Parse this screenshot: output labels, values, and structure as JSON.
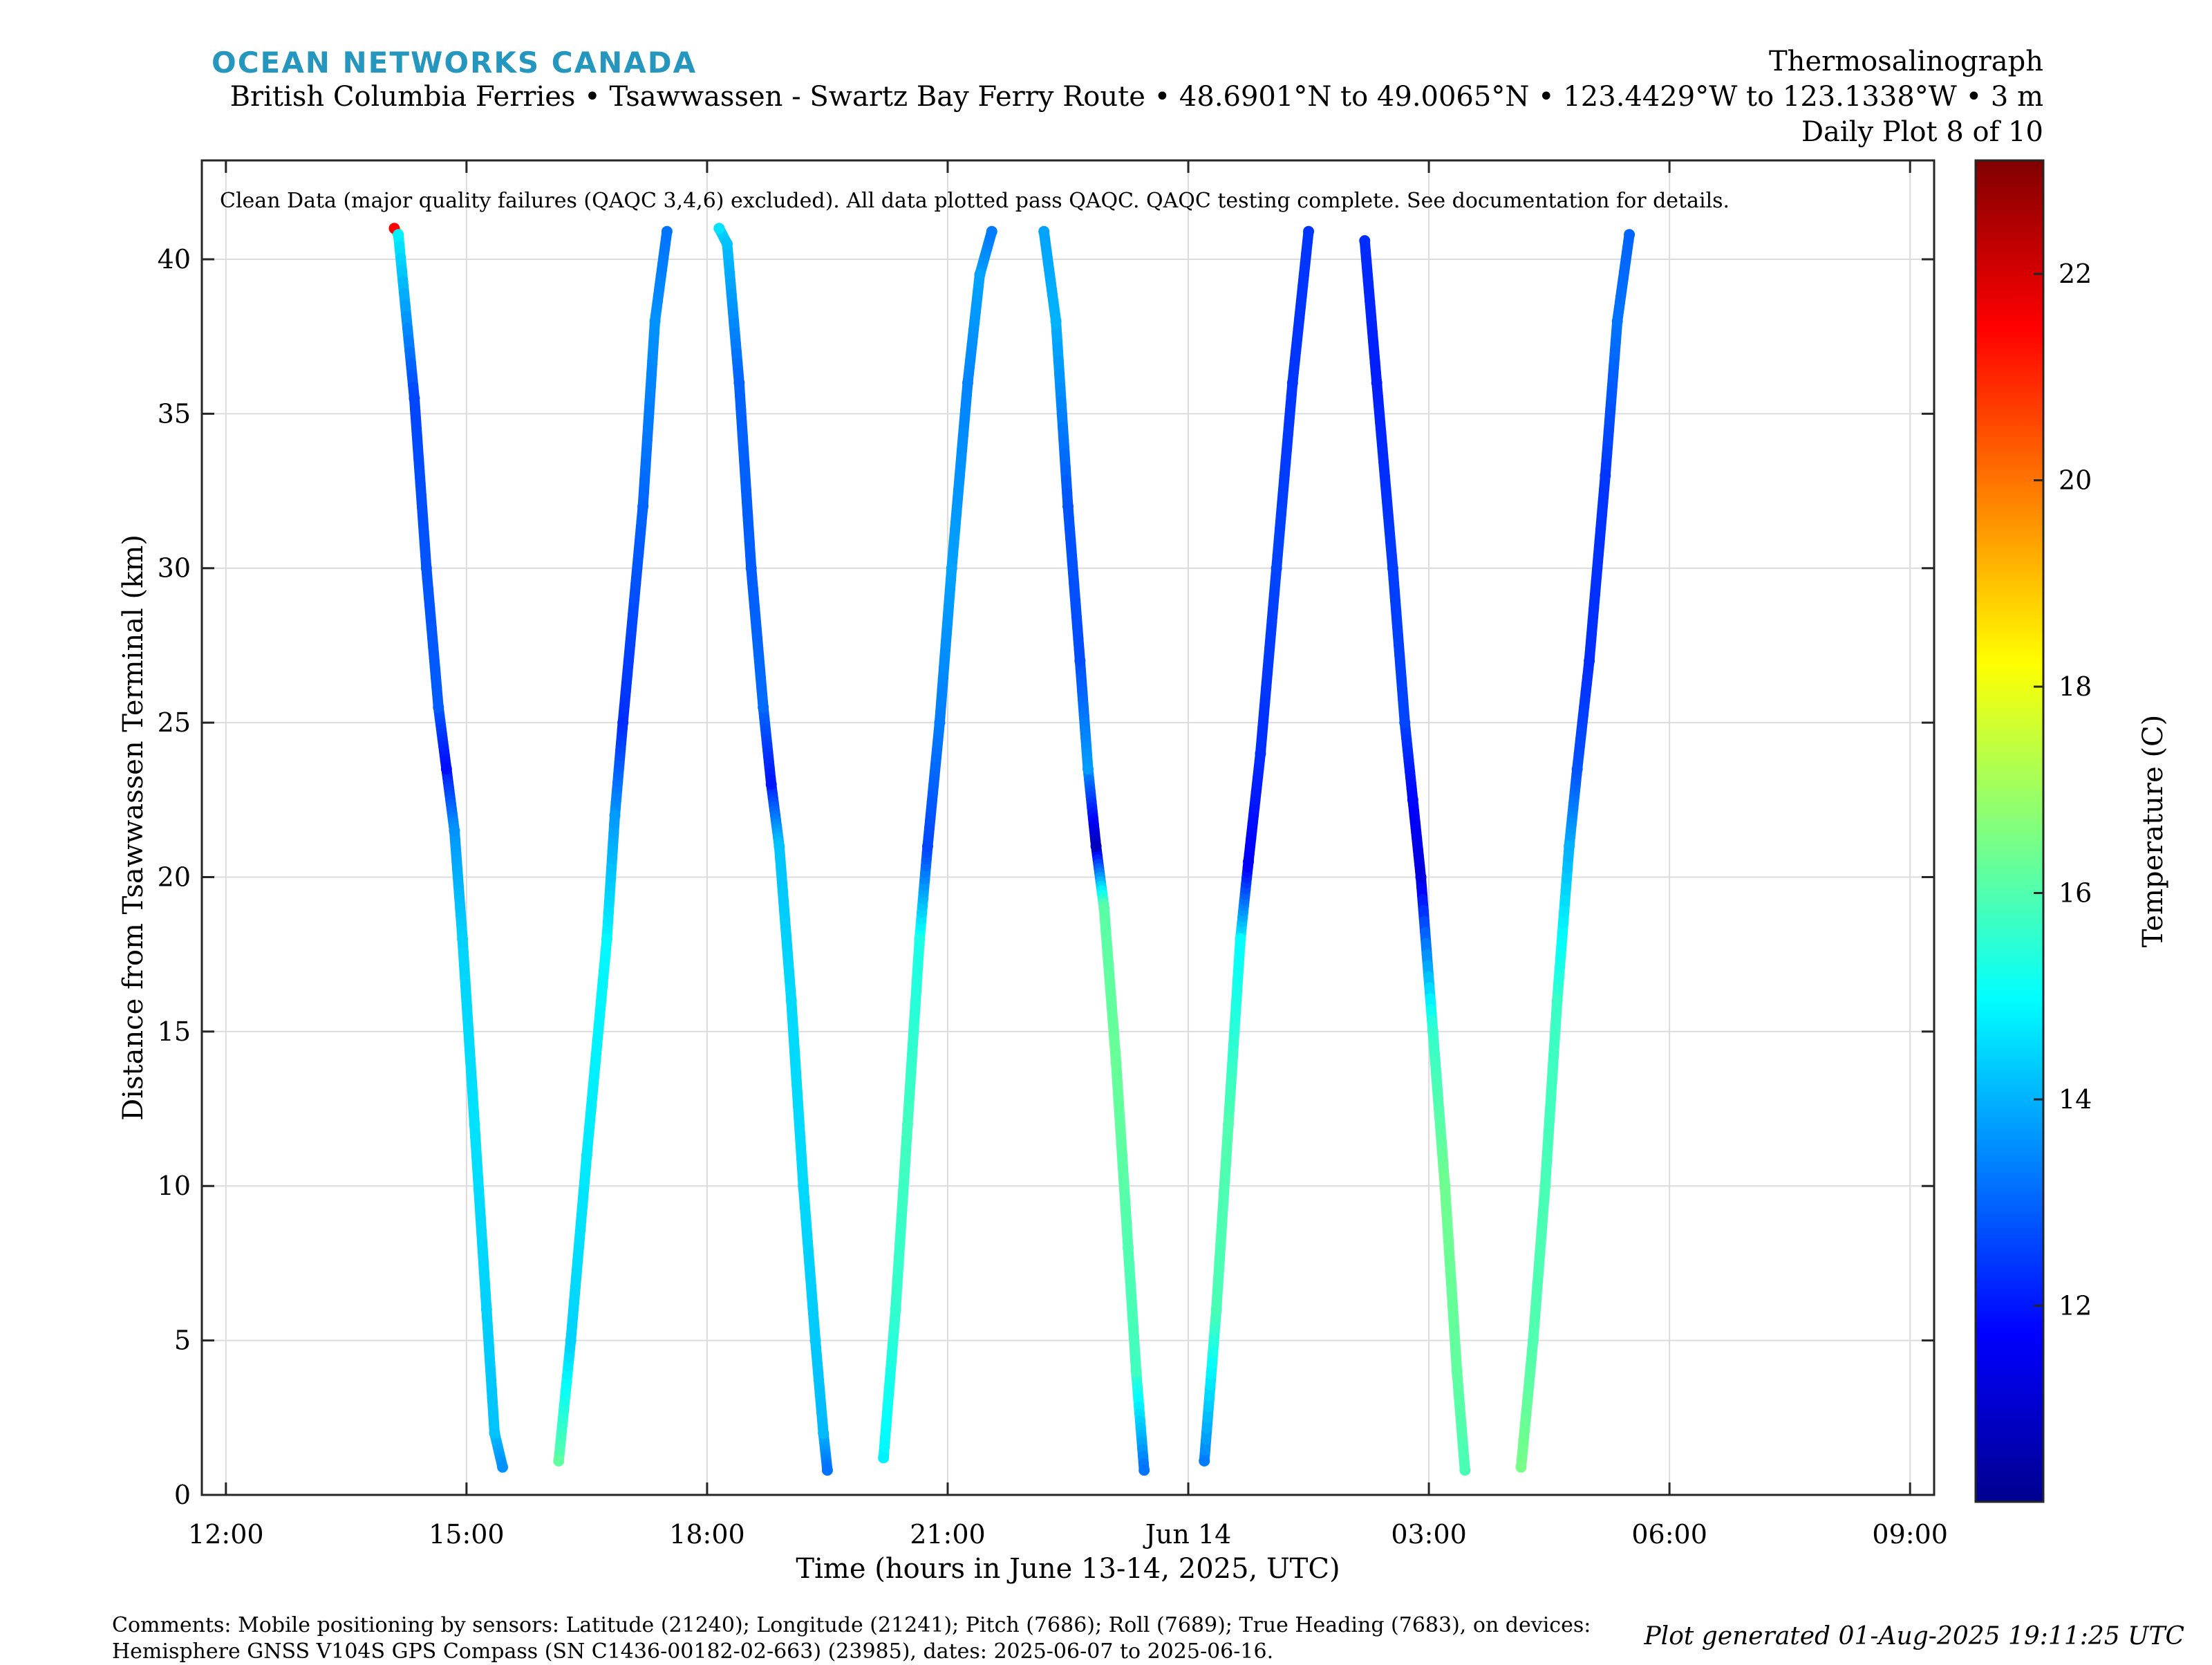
{
  "header": {
    "brand": "OCEAN NETWORKS CANADA",
    "title": "Thermosalinograph",
    "subtitle": "British Columbia Ferries • Tsawwassen - Swartz Bay Ferry Route • 48.6901°N to 49.0065°N • 123.4429°W to 123.1338°W • 3 m",
    "plot_index": "Daily Plot 8 of 10"
  },
  "footer": {
    "comments_line1": "Comments: Mobile positioning by sensors: Latitude (21240); Longitude (21241); Pitch (7686); Roll (7689); True Heading (7683), on devices:",
    "comments_line2": "Hemisphere GNSS V104S GPS Compass (SN C1436-00182-02-663) (23985), dates: 2025-06-07 to 2025-06-16.",
    "generated": "Plot generated 01-Aug-2025 19:11:25 UTC"
  },
  "chart_data": {
    "type": "scatter",
    "annotation": "Clean Data (major quality failures (QAQC 3,4,6) excluded). All data plotted pass QAQC. QAQC testing complete. See documentation for details.",
    "xlabel": "Time (hours in June 13-14, 2025, UTC)",
    "ylabel": "Distance from Tsawwassen Terminal (km)",
    "colorbar_label": "Temperature (C)",
    "x_tick_labels": [
      "12:00",
      "15:00",
      "18:00",
      "21:00",
      "Jun 14",
      "03:00",
      "06:00",
      "09:00"
    ],
    "x_tick_hours": [
      12,
      15,
      18,
      21,
      24,
      27,
      30,
      33
    ],
    "y_ticks": [
      0,
      5,
      10,
      15,
      20,
      25,
      30,
      35,
      40
    ],
    "colorbar_ticks": [
      12,
      14,
      16,
      18,
      20,
      22
    ],
    "xlim_hours": [
      11.7,
      33.3
    ],
    "ylim": [
      0,
      43.2
    ],
    "clim": [
      10.1,
      23.1
    ],
    "grid": true,
    "colormap": "jet",
    "series": [
      {
        "points": [
          {
            "t": 14.1,
            "d": 41.0,
            "temp": 21.5
          },
          {
            "t": 14.15,
            "d": 40.8,
            "temp": 14.8
          },
          {
            "t": 14.35,
            "d": 35.5,
            "temp": 12.6
          },
          {
            "t": 14.5,
            "d": 30.0,
            "temp": 12.8
          },
          {
            "t": 14.65,
            "d": 25.5,
            "temp": 12.9
          },
          {
            "t": 14.75,
            "d": 23.5,
            "temp": 11.9
          },
          {
            "t": 14.85,
            "d": 21.5,
            "temp": 13.6
          },
          {
            "t": 14.95,
            "d": 18.0,
            "temp": 14.4
          },
          {
            "t": 15.1,
            "d": 12.0,
            "temp": 14.6
          },
          {
            "t": 15.25,
            "d": 6.0,
            "temp": 14.4
          },
          {
            "t": 15.35,
            "d": 2.0,
            "temp": 14.2
          },
          {
            "t": 15.45,
            "d": 0.9,
            "temp": 13.6
          }
        ]
      },
      {
        "points": [
          {
            "t": 16.15,
            "d": 1.1,
            "temp": 16.2
          },
          {
            "t": 16.3,
            "d": 5.0,
            "temp": 14.4
          },
          {
            "t": 16.5,
            "d": 11.0,
            "temp": 14.7
          },
          {
            "t": 16.75,
            "d": 18.0,
            "temp": 14.9
          },
          {
            "t": 16.85,
            "d": 22.0,
            "temp": 13.7
          },
          {
            "t": 16.95,
            "d": 25.0,
            "temp": 12.3
          },
          {
            "t": 17.2,
            "d": 32.0,
            "temp": 13.0
          },
          {
            "t": 17.35,
            "d": 38.0,
            "temp": 13.6
          },
          {
            "t": 17.5,
            "d": 40.9,
            "temp": 13.2
          }
        ]
      },
      {
        "points": [
          {
            "t": 18.15,
            "d": 41.0,
            "temp": 14.6
          },
          {
            "t": 18.25,
            "d": 40.5,
            "temp": 14.2
          },
          {
            "t": 18.4,
            "d": 36.0,
            "temp": 13.0
          },
          {
            "t": 18.55,
            "d": 30.0,
            "temp": 12.9
          },
          {
            "t": 18.7,
            "d": 25.5,
            "temp": 13.1
          },
          {
            "t": 18.8,
            "d": 23.0,
            "temp": 12.0
          },
          {
            "t": 18.9,
            "d": 21.0,
            "temp": 14.2
          },
          {
            "t": 19.05,
            "d": 16.0,
            "temp": 14.5
          },
          {
            "t": 19.2,
            "d": 10.0,
            "temp": 14.5
          },
          {
            "t": 19.35,
            "d": 5.0,
            "temp": 14.3
          },
          {
            "t": 19.45,
            "d": 2.0,
            "temp": 14.1
          },
          {
            "t": 19.5,
            "d": 0.8,
            "temp": 13.2
          }
        ]
      },
      {
        "points": [
          {
            "t": 20.2,
            "d": 1.2,
            "temp": 14.8
          },
          {
            "t": 20.35,
            "d": 6.0,
            "temp": 15.6
          },
          {
            "t": 20.5,
            "d": 12.0,
            "temp": 15.8
          },
          {
            "t": 20.65,
            "d": 18.0,
            "temp": 15.3
          },
          {
            "t": 20.75,
            "d": 21.0,
            "temp": 12.6
          },
          {
            "t": 20.9,
            "d": 25.0,
            "temp": 13.3
          },
          {
            "t": 21.05,
            "d": 30.0,
            "temp": 13.8
          },
          {
            "t": 21.25,
            "d": 36.0,
            "temp": 13.4
          },
          {
            "t": 21.4,
            "d": 39.5,
            "temp": 13.8
          },
          {
            "t": 21.55,
            "d": 40.9,
            "temp": 13.3
          }
        ]
      },
      {
        "points": [
          {
            "t": 22.2,
            "d": 40.9,
            "temp": 13.8
          },
          {
            "t": 22.35,
            "d": 38.0,
            "temp": 14.0
          },
          {
            "t": 22.5,
            "d": 32.0,
            "temp": 12.8
          },
          {
            "t": 22.65,
            "d": 27.0,
            "temp": 12.7
          },
          {
            "t": 22.75,
            "d": 23.5,
            "temp": 13.7
          },
          {
            "t": 22.85,
            "d": 21.0,
            "temp": 10.9
          },
          {
            "t": 22.95,
            "d": 19.0,
            "temp": 16.1
          },
          {
            "t": 23.1,
            "d": 14.0,
            "temp": 16.3
          },
          {
            "t": 23.25,
            "d": 8.0,
            "temp": 16.0
          },
          {
            "t": 23.35,
            "d": 4.0,
            "temp": 15.8
          },
          {
            "t": 23.45,
            "d": 0.8,
            "temp": 13.2
          }
        ]
      },
      {
        "points": [
          {
            "t": 24.2,
            "d": 1.1,
            "temp": 13.3
          },
          {
            "t": 24.35,
            "d": 6.0,
            "temp": 15.9
          },
          {
            "t": 24.5,
            "d": 12.0,
            "temp": 16.0
          },
          {
            "t": 24.65,
            "d": 18.0,
            "temp": 15.0
          },
          {
            "t": 24.75,
            "d": 20.5,
            "temp": 11.6
          },
          {
            "t": 24.9,
            "d": 24.0,
            "temp": 12.3
          },
          {
            "t": 25.1,
            "d": 30.0,
            "temp": 12.6
          },
          {
            "t": 25.3,
            "d": 36.0,
            "temp": 12.4
          },
          {
            "t": 25.5,
            "d": 40.9,
            "temp": 12.4
          }
        ]
      },
      {
        "points": [
          {
            "t": 26.2,
            "d": 40.6,
            "temp": 12.3
          },
          {
            "t": 26.35,
            "d": 36.0,
            "temp": 12.1
          },
          {
            "t": 26.55,
            "d": 30.0,
            "temp": 12.5
          },
          {
            "t": 26.7,
            "d": 25.0,
            "temp": 12.6
          },
          {
            "t": 26.8,
            "d": 22.5,
            "temp": 11.8
          },
          {
            "t": 26.9,
            "d": 20.0,
            "temp": 11.3
          },
          {
            "t": 27.05,
            "d": 15.0,
            "temp": 15.6
          },
          {
            "t": 27.2,
            "d": 10.0,
            "temp": 16.4
          },
          {
            "t": 27.35,
            "d": 4.0,
            "temp": 16.2
          },
          {
            "t": 27.45,
            "d": 0.8,
            "temp": 15.9
          }
        ]
      },
      {
        "points": [
          {
            "t": 28.15,
            "d": 0.9,
            "temp": 16.5
          },
          {
            "t": 28.3,
            "d": 5.0,
            "temp": 16.0
          },
          {
            "t": 28.45,
            "d": 10.0,
            "temp": 15.9
          },
          {
            "t": 28.6,
            "d": 16.0,
            "temp": 15.7
          },
          {
            "t": 28.75,
            "d": 21.0,
            "temp": 14.0
          },
          {
            "t": 28.85,
            "d": 23.5,
            "temp": 12.8
          },
          {
            "t": 29.0,
            "d": 27.0,
            "temp": 12.3
          },
          {
            "t": 29.2,
            "d": 33.0,
            "temp": 12.4
          },
          {
            "t": 29.35,
            "d": 38.0,
            "temp": 13.2
          },
          {
            "t": 29.5,
            "d": 40.8,
            "temp": 13.0
          }
        ]
      }
    ]
  }
}
